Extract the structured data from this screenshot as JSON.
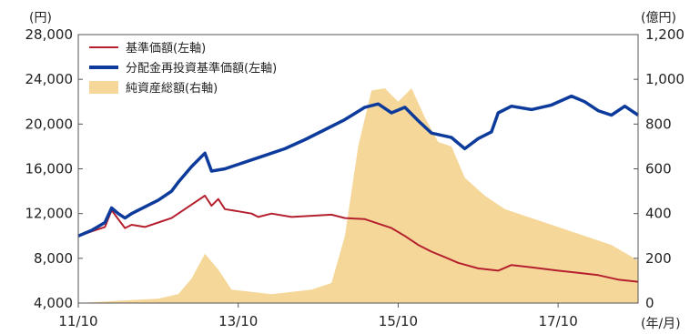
{
  "chart_data": {
    "type": "line",
    "title": "",
    "left_axis": {
      "unit": "(円)",
      "min": 4000,
      "max": 28000,
      "ticks": [
        "4,000",
        "8,000",
        "12,000",
        "16,000",
        "20,000",
        "24,000",
        "28,000"
      ],
      "tick_values": [
        4000,
        8000,
        12000,
        16000,
        20000,
        24000,
        28000
      ]
    },
    "right_axis": {
      "unit": "(億円)",
      "min": 0,
      "max": 1200,
      "ticks": [
        "0",
        "200",
        "400",
        "600",
        "800",
        "1,000",
        "1,200"
      ],
      "tick_values": [
        0,
        200,
        400,
        600,
        800,
        1000,
        1200
      ]
    },
    "x_axis": {
      "unit": "(年/月)",
      "min": "2011-10",
      "max": "2018-10",
      "ticks": [
        "11/10",
        "13/10",
        "15/10",
        "17/10"
      ],
      "tick_dates": [
        "2011-10",
        "2013-10",
        "2015-10",
        "2017-10"
      ]
    },
    "legend": {
      "placement": "top-left",
      "entries": [
        "基準価額(左軸)",
        "分配金再投資基準価額(左軸)",
        "純資産総額(右軸)"
      ]
    },
    "grid": false,
    "series": [
      {
        "name": "基準価額(左軸)",
        "axis": "left",
        "style": "line",
        "color": "#b5202e",
        "points": [
          [
            "2011-10",
            10000
          ],
          [
            "2011-12",
            10400
          ],
          [
            "2012-02",
            10800
          ],
          [
            "2012-03",
            12300
          ],
          [
            "2012-04",
            11500
          ],
          [
            "2012-05",
            10700
          ],
          [
            "2012-06",
            11000
          ],
          [
            "2012-08",
            10800
          ],
          [
            "2012-10",
            11200
          ],
          [
            "2012-12",
            11600
          ],
          [
            "2013-01",
            12000
          ],
          [
            "2013-03",
            12800
          ],
          [
            "2013-05",
            13600
          ],
          [
            "2013-06",
            12700
          ],
          [
            "2013-07",
            13300
          ],
          [
            "2013-08",
            12400
          ],
          [
            "2013-10",
            12200
          ],
          [
            "2013-12",
            12000
          ],
          [
            "2014-01",
            11700
          ],
          [
            "2014-03",
            12000
          ],
          [
            "2014-06",
            11700
          ],
          [
            "2014-09",
            11800
          ],
          [
            "2014-12",
            11900
          ],
          [
            "2015-02",
            11600
          ],
          [
            "2015-05",
            11500
          ],
          [
            "2015-07",
            11100
          ],
          [
            "2015-09",
            10700
          ],
          [
            "2015-11",
            10000
          ],
          [
            "2016-01",
            9200
          ],
          [
            "2016-03",
            8600
          ],
          [
            "2016-05",
            8100
          ],
          [
            "2016-07",
            7600
          ],
          [
            "2016-10",
            7100
          ],
          [
            "2017-01",
            6900
          ],
          [
            "2017-03",
            7400
          ],
          [
            "2017-06",
            7200
          ],
          [
            "2017-10",
            6900
          ],
          [
            "2018-01",
            6700
          ],
          [
            "2018-04",
            6500
          ],
          [
            "2018-07",
            6100
          ],
          [
            "2018-10",
            5900
          ]
        ]
      },
      {
        "name": "分配金再投資基準価額(左軸)",
        "axis": "left",
        "style": "line",
        "color": "#0d3b9c",
        "points": [
          [
            "2011-10",
            10000
          ],
          [
            "2011-12",
            10500
          ],
          [
            "2012-02",
            11200
          ],
          [
            "2012-03",
            12500
          ],
          [
            "2012-04",
            12000
          ],
          [
            "2012-05",
            11600
          ],
          [
            "2012-06",
            12000
          ],
          [
            "2012-08",
            12600
          ],
          [
            "2012-10",
            13200
          ],
          [
            "2012-12",
            14000
          ],
          [
            "2013-01",
            14800
          ],
          [
            "2013-03",
            16200
          ],
          [
            "2013-05",
            17400
          ],
          [
            "2013-06",
            15800
          ],
          [
            "2013-08",
            16000
          ],
          [
            "2013-10",
            16400
          ],
          [
            "2013-12",
            16800
          ],
          [
            "2014-02",
            17200
          ],
          [
            "2014-05",
            17800
          ],
          [
            "2014-08",
            18600
          ],
          [
            "2014-11",
            19500
          ],
          [
            "2015-02",
            20400
          ],
          [
            "2015-05",
            21500
          ],
          [
            "2015-07",
            21800
          ],
          [
            "2015-09",
            21000
          ],
          [
            "2015-11",
            21500
          ],
          [
            "2016-01",
            20300
          ],
          [
            "2016-03",
            19200
          ],
          [
            "2016-06",
            18800
          ],
          [
            "2016-08",
            17800
          ],
          [
            "2016-10",
            18700
          ],
          [
            "2016-12",
            19300
          ],
          [
            "2017-01",
            21000
          ],
          [
            "2017-03",
            21600
          ],
          [
            "2017-06",
            21300
          ],
          [
            "2017-09",
            21700
          ],
          [
            "2017-12",
            22500
          ],
          [
            "2018-02",
            22000
          ],
          [
            "2018-04",
            21200
          ],
          [
            "2018-06",
            20800
          ],
          [
            "2018-08",
            21600
          ],
          [
            "2018-10",
            20800
          ]
        ]
      },
      {
        "name": "純資産総額(右軸)",
        "axis": "right",
        "style": "area",
        "color": "#f5d79a",
        "points": [
          [
            "2011-10",
            0
          ],
          [
            "2012-04",
            10
          ],
          [
            "2012-10",
            20
          ],
          [
            "2013-01",
            40
          ],
          [
            "2013-03",
            110
          ],
          [
            "2013-05",
            220
          ],
          [
            "2013-07",
            150
          ],
          [
            "2013-09",
            60
          ],
          [
            "2013-12",
            50
          ],
          [
            "2014-03",
            40
          ],
          [
            "2014-06",
            50
          ],
          [
            "2014-09",
            60
          ],
          [
            "2014-12",
            90
          ],
          [
            "2015-02",
            300
          ],
          [
            "2015-04",
            700
          ],
          [
            "2015-06",
            950
          ],
          [
            "2015-08",
            960
          ],
          [
            "2015-10",
            900
          ],
          [
            "2015-12",
            960
          ],
          [
            "2016-02",
            830
          ],
          [
            "2016-04",
            720
          ],
          [
            "2016-06",
            700
          ],
          [
            "2016-08",
            560
          ],
          [
            "2016-11",
            480
          ],
          [
            "2017-02",
            420
          ],
          [
            "2017-06",
            380
          ],
          [
            "2017-10",
            340
          ],
          [
            "2018-02",
            300
          ],
          [
            "2018-06",
            260
          ],
          [
            "2018-10",
            190
          ]
        ]
      }
    ]
  }
}
